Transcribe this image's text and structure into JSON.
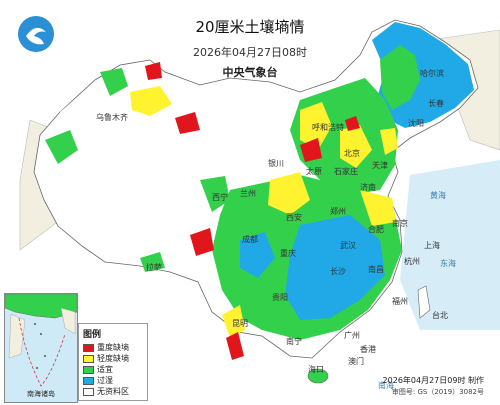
{
  "header": {
    "title": "20厘米土壤墒情",
    "datetime": "2026年04月27日08时",
    "issuer": "中央气象台"
  },
  "legend": {
    "title": "图例",
    "items": [
      {
        "label": "重度缺墒",
        "color": "#e0161c"
      },
      {
        "label": "轻度缺墒",
        "color": "#fff22e"
      },
      {
        "label": "适宜",
        "color": "#33d04c"
      },
      {
        "label": "过湿",
        "color": "#20a9e6"
      },
      {
        "label": "无资料区",
        "color": "#ffffff"
      }
    ]
  },
  "inset": {
    "label": "南海诸岛"
  },
  "footer": {
    "produced": "2026年04月27日09时 制作",
    "review_no": "审图号: GS（2019）3082号"
  },
  "place_labels": [
    {
      "name": "乌鲁木齐"
    },
    {
      "name": "哈尔滨"
    },
    {
      "name": "长春"
    },
    {
      "name": "沈阳"
    },
    {
      "name": "呼和浩特"
    },
    {
      "name": "北京"
    },
    {
      "name": "天津"
    },
    {
      "name": "石家庄"
    },
    {
      "name": "太原"
    },
    {
      "name": "济南"
    },
    {
      "name": "银川"
    },
    {
      "name": "兰州"
    },
    {
      "name": "西宁"
    },
    {
      "name": "郑州"
    },
    {
      "name": "西安"
    },
    {
      "name": "合肥"
    },
    {
      "name": "南京"
    },
    {
      "name": "上海"
    },
    {
      "name": "武汉"
    },
    {
      "name": "杭州"
    },
    {
      "name": "成都"
    },
    {
      "name": "重庆"
    },
    {
      "name": "长沙"
    },
    {
      "name": "南昌"
    },
    {
      "name": "福州"
    },
    {
      "name": "拉萨"
    },
    {
      "name": "贵阳"
    },
    {
      "name": "昆明"
    },
    {
      "name": "南宁"
    },
    {
      "name": "广州"
    },
    {
      "name": "台北"
    },
    {
      "name": "香港"
    },
    {
      "name": "澳门"
    },
    {
      "name": "海口"
    }
  ],
  "sea_labels": [
    {
      "name": "黄海"
    },
    {
      "name": "东海"
    },
    {
      "name": "南海"
    }
  ]
}
